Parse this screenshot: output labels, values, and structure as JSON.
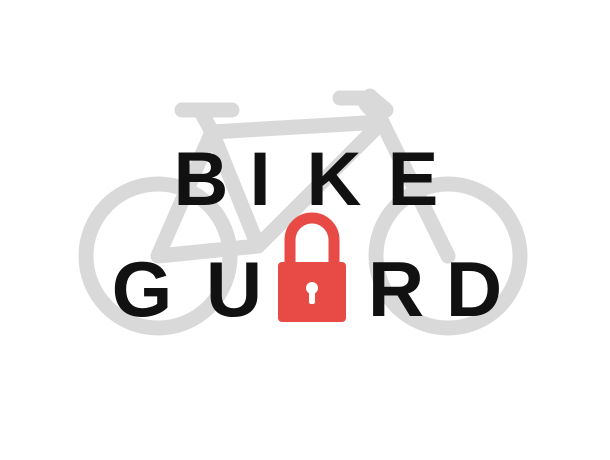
{
  "logo": {
    "line1": [
      "B",
      "I",
      "K",
      "E"
    ],
    "line2": [
      "G",
      "U",
      "A",
      "R",
      "D"
    ],
    "lock_replaces_letter": "A"
  },
  "colors": {
    "background": "#ffffff",
    "text": "#111111",
    "bicycle": "#d9d9d9",
    "lock": "#e84a45",
    "keyhole": "#ffffff"
  },
  "icons": {
    "background": "bicycle-icon",
    "letter_substitute": "padlock-icon"
  }
}
